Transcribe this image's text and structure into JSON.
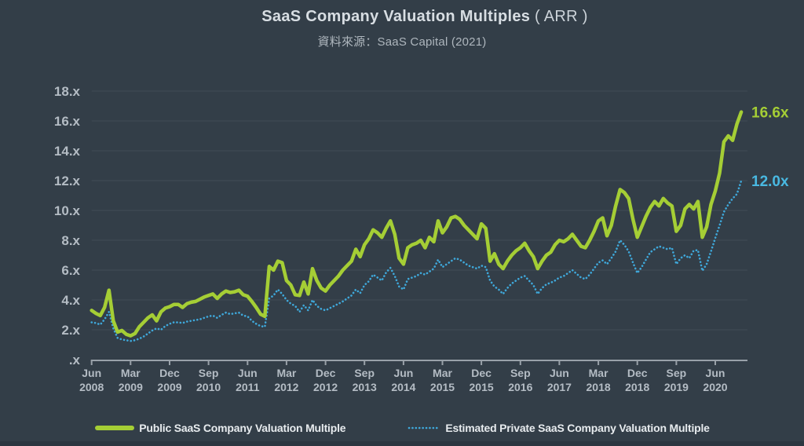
{
  "title": {
    "main": "SaaS Company Valuation Multiples",
    "suffix": "( ARR )"
  },
  "subtitle": "資料來源：SaaS Capital (2021)",
  "colors": {
    "background": "#333e48",
    "grid": "#414c56",
    "axis": "#99a1a9",
    "tick_text": "#b4bcc4",
    "public_line": "#a5ce35",
    "private_line": "#3fa8da",
    "public_end_label": "#a5ce35",
    "private_end_label": "#49b9e2"
  },
  "chart_data": {
    "type": "line",
    "title": "SaaS Company Valuation Multiples ( ARR )",
    "source_note": "資料來源：SaaS Capital (2021)",
    "x_start": "Jun 2008",
    "x_end": "Dec 2020",
    "x_interval": "monthly",
    "x_tick_every_months": 9,
    "x_tick_labels": [
      {
        "month": "Jun",
        "year": "2008"
      },
      {
        "month": "Mar",
        "year": "2009"
      },
      {
        "month": "Dec",
        "year": "2009"
      },
      {
        "month": "Sep",
        "year": "2010"
      },
      {
        "month": "Jun",
        "year": "2011"
      },
      {
        "month": "Mar",
        "year": "2012"
      },
      {
        "month": "Dec",
        "year": "2012"
      },
      {
        "month": "Sep",
        "year": "2013"
      },
      {
        "month": "Jun",
        "year": "2014"
      },
      {
        "month": "Mar",
        "year": "2015"
      },
      {
        "month": "Dec",
        "year": "2015"
      },
      {
        "month": "Sep",
        "year": "2016"
      },
      {
        "month": "Jun",
        "year": "2017"
      },
      {
        "month": "Mar",
        "year": "2018"
      },
      {
        "month": "Dec",
        "year": "2018"
      },
      {
        "month": "Sep",
        "year": "2019"
      },
      {
        "month": "Jun",
        "year": "2020"
      }
    ],
    "y_axis": {
      "min": 0,
      "max": 18,
      "tick_step": 2,
      "tick_labels": [
        "18.x",
        "16.x",
        "14.x",
        "12.x",
        "10.x",
        "8.x",
        "6.x",
        "4.x",
        "2.x",
        ".x"
      ]
    },
    "grid": true,
    "legend_position": "bottom",
    "series": [
      {
        "name": "Public SaaS Company Valuation Multiple",
        "color": "#a5ce35",
        "label_color": "#a5ce35",
        "line_style": "solid",
        "end_label": "16.6x",
        "values": [
          3.3,
          3.1,
          2.95,
          3.5,
          4.65,
          2.6,
          1.85,
          1.95,
          1.7,
          1.6,
          1.75,
          2.2,
          2.5,
          2.8,
          3.0,
          2.6,
          3.2,
          3.45,
          3.55,
          3.7,
          3.7,
          3.5,
          3.75,
          3.85,
          3.9,
          4.05,
          4.2,
          4.3,
          4.4,
          4.1,
          4.4,
          4.6,
          4.5,
          4.55,
          4.65,
          4.35,
          4.25,
          3.9,
          3.5,
          3.05,
          2.9,
          6.25,
          6.0,
          6.6,
          6.5,
          5.3,
          5.0,
          4.35,
          4.3,
          5.2,
          4.4,
          6.1,
          5.3,
          4.8,
          4.6,
          5.0,
          5.3,
          5.6,
          6.0,
          6.3,
          6.6,
          7.4,
          6.9,
          7.7,
          8.1,
          8.7,
          8.5,
          8.2,
          8.8,
          9.3,
          8.4,
          6.8,
          6.4,
          7.5,
          7.7,
          7.8,
          8.0,
          7.5,
          8.2,
          7.9,
          9.3,
          8.5,
          8.9,
          9.5,
          9.6,
          9.4,
          9.0,
          8.7,
          8.4,
          8.1,
          9.1,
          8.8,
          6.6,
          7.1,
          6.4,
          6.1,
          6.6,
          7.0,
          7.3,
          7.5,
          7.8,
          7.3,
          6.9,
          6.1,
          6.6,
          7.0,
          7.2,
          7.7,
          8.0,
          7.9,
          8.1,
          8.4,
          8.0,
          7.6,
          7.5,
          8.0,
          8.6,
          9.3,
          9.5,
          8.3,
          9.0,
          10.3,
          11.4,
          11.2,
          10.8,
          9.4,
          8.2,
          8.9,
          9.6,
          10.2,
          10.6,
          10.3,
          10.8,
          10.5,
          10.3,
          8.6,
          9.0,
          10.1,
          10.4,
          10.1,
          10.6,
          8.2,
          8.9,
          10.4,
          11.3,
          12.5,
          14.6,
          15.0,
          14.7,
          15.8,
          16.6
        ]
      },
      {
        "name": "Estimated Private SaaS Company Valuation Multiple",
        "color": "#3fa8da",
        "label_color": "#49b9e2",
        "line_style": "dotted",
        "end_label": "12.0x",
        "values": [
          2.5,
          2.45,
          2.35,
          2.7,
          3.2,
          2.1,
          1.45,
          1.35,
          1.3,
          1.25,
          1.3,
          1.4,
          1.55,
          1.75,
          1.95,
          2.1,
          2.0,
          2.25,
          2.4,
          2.5,
          2.5,
          2.45,
          2.55,
          2.6,
          2.65,
          2.7,
          2.8,
          2.9,
          2.95,
          2.8,
          3.0,
          3.15,
          3.05,
          3.1,
          3.15,
          2.95,
          2.9,
          2.6,
          2.4,
          2.25,
          2.2,
          4.1,
          4.3,
          4.7,
          4.4,
          4.0,
          3.75,
          3.6,
          3.2,
          3.65,
          3.3,
          4.0,
          3.6,
          3.4,
          3.3,
          3.45,
          3.6,
          3.75,
          3.9,
          4.1,
          4.3,
          4.7,
          4.45,
          5.0,
          5.25,
          5.7,
          5.5,
          5.3,
          5.85,
          6.15,
          5.6,
          4.9,
          4.7,
          5.4,
          5.5,
          5.6,
          5.8,
          5.7,
          5.9,
          6.1,
          6.7,
          6.2,
          6.4,
          6.6,
          6.8,
          6.7,
          6.5,
          6.3,
          6.2,
          6.1,
          6.3,
          6.2,
          5.3,
          4.9,
          4.7,
          4.4,
          4.8,
          5.1,
          5.3,
          5.5,
          5.6,
          5.3,
          5.0,
          4.4,
          4.8,
          5.05,
          5.15,
          5.3,
          5.5,
          5.6,
          5.8,
          6.0,
          5.75,
          5.5,
          5.4,
          5.7,
          6.1,
          6.5,
          6.65,
          6.4,
          6.8,
          7.25,
          8.0,
          7.7,
          7.25,
          6.5,
          5.8,
          6.2,
          6.7,
          7.2,
          7.4,
          7.6,
          7.5,
          7.4,
          7.5,
          6.4,
          6.8,
          7.0,
          6.8,
          7.3,
          7.35,
          5.95,
          6.4,
          7.25,
          8.15,
          9.0,
          9.9,
          10.4,
          10.8,
          11.1,
          12.0
        ]
      }
    ]
  }
}
